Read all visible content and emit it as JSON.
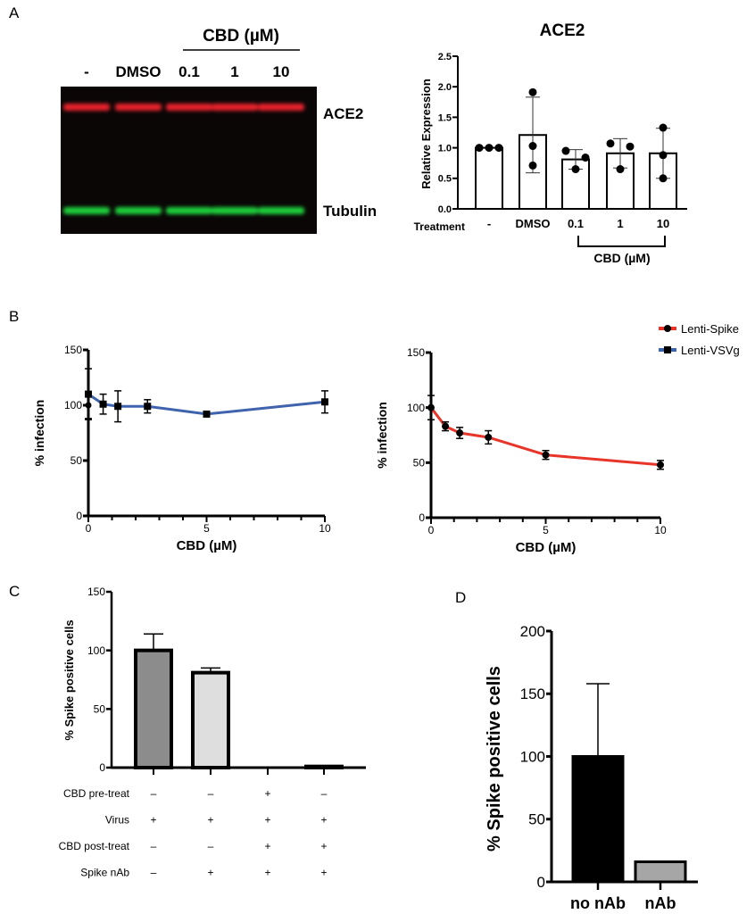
{
  "panel_labels": {
    "a": "A",
    "b": "B",
    "c": "C",
    "d": "D"
  },
  "blot": {
    "lanes": [
      "-",
      "DMSO",
      "0.1",
      "1",
      "10"
    ],
    "group_label": "CBD (µM)",
    "bands": [
      "ACE2",
      "Tubulin"
    ],
    "colors": {
      "ACE2": "#e8202a",
      "Tubulin": "#1fcf3a",
      "background": "#0a0606"
    }
  },
  "chart_data": [
    {
      "id": "A-bar",
      "type": "bar",
      "title": "ACE2",
      "ylabel": "Relative Expression",
      "xlabel": "Treatment",
      "categories": [
        "-",
        "DMSO",
        "0.1",
        "1",
        "10"
      ],
      "group_label": "CBD (µM)",
      "values": [
        1.0,
        1.21,
        0.81,
        0.91,
        0.91
      ],
      "error": [
        0.0,
        0.62,
        0.16,
        0.24,
        0.41
      ],
      "points": [
        [
          1.0,
          1.0,
          1.0
        ],
        [
          1.91,
          1.03,
          0.71
        ],
        [
          0.95,
          0.84,
          0.65
        ],
        [
          1.07,
          1.02,
          0.65
        ],
        [
          1.33,
          0.88,
          0.5
        ]
      ],
      "yticks": [
        "0.0",
        "0.5",
        "1.0",
        "1.5",
        "2.0",
        "2.5"
      ],
      "ylim": [
        0,
        2.5
      ]
    },
    {
      "id": "B-left",
      "type": "line",
      "ylabel": "% infection",
      "xlabel": "CBD (µM)",
      "xticks": [
        "0",
        "5",
        "10"
      ],
      "yticks": [
        "0",
        "50",
        "100",
        "150"
      ],
      "xlim": [
        0,
        10
      ],
      "ylim": [
        0,
        150
      ],
      "series": [
        {
          "name": "Lenti-VSVg",
          "color": "#3f63ad",
          "marker": "square",
          "x": [
            0,
            0.625,
            1.25,
            2.5,
            5,
            10
          ],
          "y": [
            110,
            101,
            99,
            99,
            92,
            103
          ],
          "err": [
            23,
            9,
            14,
            6,
            2,
            10
          ]
        }
      ],
      "extra_points": [
        {
          "x": 0,
          "y": 100,
          "marker": "circle",
          "err": 12
        }
      ]
    },
    {
      "id": "B-right",
      "type": "line",
      "ylabel": "% infection",
      "xlabel": "CBD (µM)",
      "xticks": [
        "0",
        "5",
        "10"
      ],
      "yticks": [
        "0",
        "50",
        "100",
        "150"
      ],
      "xlim": [
        0,
        10
      ],
      "ylim": [
        0,
        150
      ],
      "legend": "top-right",
      "legend_entries": [
        {
          "name": "Lenti-Spike",
          "color": "#e8352a",
          "marker": "circle"
        },
        {
          "name": "Lenti-VSVg",
          "color": "#3f63ad",
          "marker": "square"
        }
      ],
      "series": [
        {
          "name": "Lenti-Spike",
          "color": "#e8352a",
          "marker": "circle",
          "x": [
            0,
            0.625,
            1.25,
            2.5,
            5,
            10
          ],
          "y": [
            100,
            83,
            77,
            73,
            57,
            48
          ],
          "err": [
            11,
            4,
            5,
            6,
            4,
            4
          ]
        }
      ]
    },
    {
      "id": "C-bar",
      "type": "bar",
      "ylabel": "% Spike positive cells",
      "yticks": [
        "0",
        "50",
        "100",
        "150"
      ],
      "ylim": [
        0,
        150
      ],
      "values": [
        100,
        81,
        0,
        1
      ],
      "error": [
        14,
        4,
        0,
        0
      ],
      "colors": [
        "#8c8c8c",
        "#dedede",
        "#ffffff",
        "#ffffff"
      ],
      "conditions": [
        {
          "label": "CBD pre-treat",
          "values": [
            "–",
            "–",
            "+",
            "–"
          ]
        },
        {
          "label": "Virus",
          "values": [
            "+",
            "+",
            "+",
            "+"
          ]
        },
        {
          "label": "CBD post-treat",
          "values": [
            "–",
            "–",
            "+",
            "+"
          ]
        },
        {
          "label": "Spike nAb",
          "values": [
            "–",
            "+",
            "+",
            "+"
          ]
        }
      ]
    },
    {
      "id": "D-bar",
      "type": "bar",
      "ylabel": "% Spike positive cells",
      "categories": [
        "no nAb",
        "nAb"
      ],
      "yticks": [
        "0",
        "50",
        "100",
        "150",
        "200"
      ],
      "ylim": [
        0,
        200
      ],
      "values": [
        100,
        16
      ],
      "error": [
        58,
        0
      ],
      "colors": [
        "#000000",
        "#a6a6a6"
      ]
    }
  ]
}
